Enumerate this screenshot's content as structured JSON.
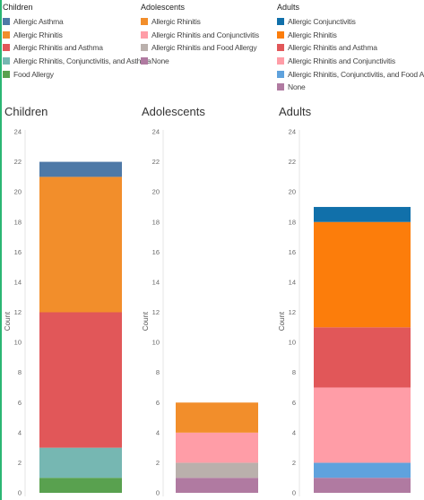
{
  "legends": [
    {
      "title": "Children",
      "items": [
        {
          "label": "Allergic Asthma",
          "color": "#4e79a7"
        },
        {
          "label": "Allergic Rhinitis",
          "color": "#f28e2b"
        },
        {
          "label": "Allergic Rhinitis and Asthma",
          "color": "#e15759"
        },
        {
          "label": "Allergic Rhinitis, Conjunctivitis, and Asthma",
          "color": "#76b7b2"
        },
        {
          "label": "Food Allergy",
          "color": "#59a14f"
        }
      ]
    },
    {
      "title": "Adolescents",
      "items": [
        {
          "label": "Allergic Rhinitis",
          "color": "#f28e2b"
        },
        {
          "label": "Allergic Rhinitis and Conjunctivitis",
          "color": "#ff9da7"
        },
        {
          "label": "Allergic Rhinitis and Food Allergy",
          "color": "#bab0ac"
        },
        {
          "label": "None",
          "color": "#b07aa1"
        }
      ]
    },
    {
      "title": "Adults",
      "items": [
        {
          "label": "Allergic Conjunctivitis",
          "color": "#1170aa"
        },
        {
          "label": "Allergic Rhinitis",
          "color": "#fc7d0b"
        },
        {
          "label": "Allergic Rhinitis and Asthma",
          "color": "#e15759"
        },
        {
          "label": "Allergic Rhinitis and Conjunctivitis",
          "color": "#ff9da7"
        },
        {
          "label": "Allergic Rhinitis, Conjunctivitis, and Food Allergy",
          "color": "#5fa2dd"
        },
        {
          "label": "None",
          "color": "#b07aa1"
        }
      ]
    }
  ],
  "chart_data": [
    {
      "type": "bar",
      "title": "Children",
      "ylabel": "Count",
      "ylim": [
        0,
        24
      ],
      "yticks": [
        "0",
        "2",
        "4",
        "6",
        "8",
        "10",
        "12",
        "14",
        "16",
        "18",
        "20",
        "22",
        "24"
      ],
      "stack_bottom_to_top": [
        {
          "name": "Food Allergy",
          "value": 1,
          "color": "#59a14f"
        },
        {
          "name": "Allergic Rhinitis, Conjunctivitis, and Asthma",
          "value": 2,
          "color": "#76b7b2"
        },
        {
          "name": "Allergic Rhinitis and Asthma",
          "value": 9,
          "color": "#e15759"
        },
        {
          "name": "Allergic Rhinitis",
          "value": 9,
          "color": "#f28e2b"
        },
        {
          "name": "Allergic Asthma",
          "value": 1,
          "color": "#4e79a7"
        }
      ]
    },
    {
      "type": "bar",
      "title": "Adolescents",
      "ylabel": "Count",
      "ylim": [
        0,
        24
      ],
      "yticks": [
        "0",
        "2",
        "4",
        "6",
        "8",
        "10",
        "12",
        "14",
        "16",
        "18",
        "20",
        "22",
        "24"
      ],
      "stack_bottom_to_top": [
        {
          "name": "None",
          "value": 1,
          "color": "#b07aa1"
        },
        {
          "name": "Allergic Rhinitis and Food Allergy",
          "value": 1,
          "color": "#bab0ac"
        },
        {
          "name": "Allergic Rhinitis and Conjunctivitis",
          "value": 2,
          "color": "#ff9da7"
        },
        {
          "name": "Allergic Rhinitis",
          "value": 2,
          "color": "#f28e2b"
        }
      ]
    },
    {
      "type": "bar",
      "title": "Adults",
      "ylabel": "Count",
      "ylim": [
        0,
        24
      ],
      "yticks": [
        "0",
        "2",
        "4",
        "6",
        "8",
        "10",
        "12",
        "14",
        "16",
        "18",
        "20",
        "22",
        "24"
      ],
      "stack_bottom_to_top": [
        {
          "name": "None",
          "value": 1,
          "color": "#b07aa1"
        },
        {
          "name": "Allergic Rhinitis, Conjunctivitis, and Food Allergy",
          "value": 1,
          "color": "#5fa2dd"
        },
        {
          "name": "Allergic Rhinitis and Conjunctivitis",
          "value": 5,
          "color": "#ff9da7"
        },
        {
          "name": "Allergic Rhinitis and Asthma",
          "value": 4,
          "color": "#e15759"
        },
        {
          "name": "Allergic Rhinitis",
          "value": 7,
          "color": "#fc7d0b"
        },
        {
          "name": "Allergic Conjunctivitis",
          "value": 1,
          "color": "#1170aa"
        }
      ]
    }
  ]
}
